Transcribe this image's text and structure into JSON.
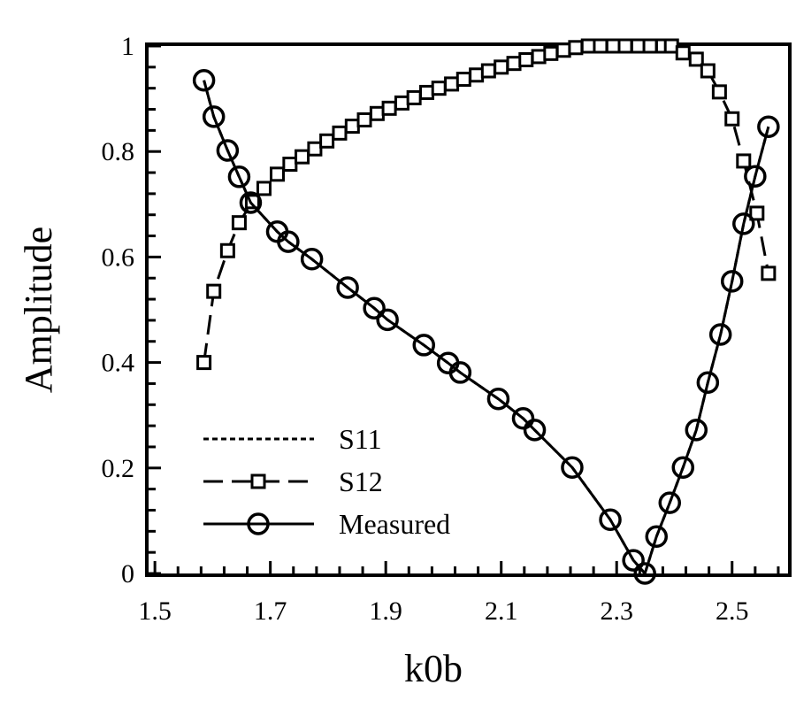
{
  "chart_data": {
    "type": "line",
    "title": "",
    "xlabel": "k0b",
    "ylabel": "Amplitude",
    "xlim": [
      1.486,
      2.6
    ],
    "ylim": [
      0,
      1
    ],
    "grid": false,
    "legend_position": "bottom-left",
    "xticks": [
      "1.5",
      "1.7",
      "1.9",
      "2.1",
      "2.3",
      "2.5"
    ],
    "xtick_values": [
      1.5,
      1.7,
      1.9,
      2.1,
      2.3,
      2.5
    ],
    "yticks": [
      "0",
      "0.2",
      "0.4",
      "0.6",
      "0.8",
      "1"
    ],
    "ytick_values": [
      0,
      0.2,
      0.4,
      0.6,
      0.8,
      1
    ],
    "series": [
      {
        "name": "S11",
        "style": "dotted",
        "marker": "none",
        "x": [
          1.585,
          1.602,
          1.626,
          1.646,
          1.666,
          1.712,
          1.731,
          1.772,
          1.834,
          1.88,
          1.903,
          1.966,
          2.008,
          2.029,
          2.095,
          2.138,
          2.158,
          2.223,
          2.289,
          2.329,
          2.349,
          2.369,
          2.392,
          2.415,
          2.438,
          2.458,
          2.48,
          2.5,
          2.52,
          2.54,
          2.563
        ],
        "y": [
          0.935,
          0.866,
          0.802,
          0.752,
          0.703,
          0.648,
          0.629,
          0.596,
          0.542,
          0.503,
          0.481,
          0.433,
          0.399,
          0.381,
          0.331,
          0.294,
          0.272,
          0.201,
          0.102,
          0.025,
          0.0,
          0.07,
          0.134,
          0.201,
          0.272,
          0.362,
          0.453,
          0.554,
          0.663,
          0.753,
          0.847
        ]
      },
      {
        "name": "S12",
        "style": "dashed",
        "marker": "square",
        "x": [
          1.585,
          1.602,
          1.626,
          1.646,
          1.669,
          1.689,
          1.712,
          1.734,
          1.755,
          1.777,
          1.798,
          1.82,
          1.842,
          1.863,
          1.885,
          1.906,
          1.928,
          1.949,
          1.971,
          1.992,
          2.014,
          2.035,
          2.057,
          2.078,
          2.1,
          2.122,
          2.143,
          2.165,
          2.186,
          2.208,
          2.229,
          2.251,
          2.272,
          2.294,
          2.315,
          2.337,
          2.358,
          2.38,
          2.395,
          2.415,
          2.438,
          2.458,
          2.478,
          2.5,
          2.52,
          2.543,
          2.563
        ],
        "y": [
          0.4,
          0.535,
          0.612,
          0.665,
          0.705,
          0.73,
          0.757,
          0.776,
          0.79,
          0.805,
          0.82,
          0.835,
          0.848,
          0.86,
          0.872,
          0.882,
          0.892,
          0.902,
          0.912,
          0.92,
          0.928,
          0.937,
          0.945,
          0.953,
          0.96,
          0.967,
          0.974,
          0.98,
          0.986,
          0.992,
          0.997,
          1.0,
          1.0,
          1.0,
          1.0,
          1.0,
          1.0,
          1.0,
          1.0,
          0.987,
          0.975,
          0.953,
          0.913,
          0.862,
          0.782,
          0.683,
          0.569
        ]
      },
      {
        "name": "Measured",
        "style": "solid",
        "marker": "circle",
        "x": [
          1.585,
          1.602,
          1.626,
          1.646,
          1.666,
          1.712,
          1.731,
          1.772,
          1.834,
          1.88,
          1.903,
          1.966,
          2.008,
          2.029,
          2.095,
          2.138,
          2.158,
          2.223,
          2.289,
          2.329,
          2.349,
          2.369,
          2.392,
          2.415,
          2.438,
          2.458,
          2.48,
          2.5,
          2.52,
          2.54,
          2.563
        ],
        "y": [
          0.935,
          0.866,
          0.802,
          0.752,
          0.703,
          0.648,
          0.629,
          0.596,
          0.542,
          0.503,
          0.481,
          0.433,
          0.399,
          0.381,
          0.331,
          0.294,
          0.272,
          0.201,
          0.102,
          0.025,
          0.0,
          0.07,
          0.134,
          0.201,
          0.272,
          0.362,
          0.453,
          0.554,
          0.663,
          0.753,
          0.847
        ]
      }
    ]
  }
}
